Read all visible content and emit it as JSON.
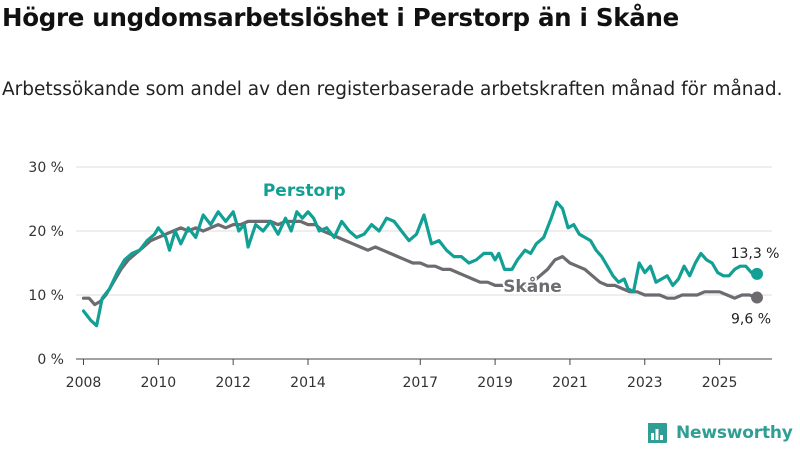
{
  "title": "Högre ungdomsarbetslöshet i Perstorp än i Skåne",
  "subtitle": "Arbetssökande som andel av den registerbaserade arbetskraften månad för månad.",
  "brand": {
    "name": "Newsworthy",
    "color": "#2f9e94"
  },
  "chart_data": {
    "type": "line",
    "title": "Högre ungdomsarbetslöshet i Perstorp än i Skåne",
    "xlabel": "",
    "ylabel": "",
    "xlim": [
      2007.8,
      2026.4
    ],
    "ylim": [
      0,
      30
    ],
    "y_ticks": [
      0,
      10,
      20,
      30
    ],
    "y_tick_labels": [
      "0 %",
      "10 %",
      "20 %",
      "30 %"
    ],
    "x_ticks": [
      2008,
      2010,
      2012,
      2014,
      2017,
      2019,
      2021,
      2023,
      2025
    ],
    "x_tick_labels": [
      "2008",
      "2010",
      "2012",
      "2014",
      "2017",
      "2019",
      "2021",
      "2023",
      "2025"
    ],
    "grid": true,
    "series": [
      {
        "name": "Perstorp",
        "color": "#12a095",
        "end_label": "13,3 %",
        "points": [
          [
            2008.0,
            7.5
          ],
          [
            2008.2,
            6.0
          ],
          [
            2008.35,
            5.2
          ],
          [
            2008.5,
            9.5
          ],
          [
            2008.7,
            11.0
          ],
          [
            2008.9,
            13.5
          ],
          [
            2009.1,
            15.5
          ],
          [
            2009.3,
            16.5
          ],
          [
            2009.5,
            17.0
          ],
          [
            2009.7,
            18.5
          ],
          [
            2009.9,
            19.5
          ],
          [
            2010.0,
            20.5
          ],
          [
            2010.2,
            19.0
          ],
          [
            2010.3,
            17.0
          ],
          [
            2010.45,
            20.0
          ],
          [
            2010.6,
            18.0
          ],
          [
            2010.8,
            20.5
          ],
          [
            2011.0,
            19.0
          ],
          [
            2011.2,
            22.5
          ],
          [
            2011.4,
            21.0
          ],
          [
            2011.6,
            23.0
          ],
          [
            2011.8,
            21.5
          ],
          [
            2012.0,
            23.0
          ],
          [
            2012.15,
            20.0
          ],
          [
            2012.3,
            21.0
          ],
          [
            2012.4,
            17.5
          ],
          [
            2012.6,
            21.0
          ],
          [
            2012.8,
            20.0
          ],
          [
            2013.0,
            21.5
          ],
          [
            2013.2,
            19.5
          ],
          [
            2013.4,
            22.0
          ],
          [
            2013.55,
            20.0
          ],
          [
            2013.7,
            23.0
          ],
          [
            2013.85,
            22.0
          ],
          [
            2014.0,
            23.0
          ],
          [
            2014.15,
            22.0
          ],
          [
            2014.3,
            20.0
          ],
          [
            2014.5,
            20.5
          ],
          [
            2014.7,
            19.0
          ],
          [
            2014.9,
            21.5
          ],
          [
            2015.1,
            20.0
          ],
          [
            2015.3,
            19.0
          ],
          [
            2015.5,
            19.5
          ],
          [
            2015.7,
            21.0
          ],
          [
            2015.9,
            20.0
          ],
          [
            2016.1,
            22.0
          ],
          [
            2016.3,
            21.5
          ],
          [
            2016.5,
            20.0
          ],
          [
            2016.7,
            18.5
          ],
          [
            2016.9,
            19.5
          ],
          [
            2017.1,
            22.5
          ],
          [
            2017.3,
            18.0
          ],
          [
            2017.5,
            18.5
          ],
          [
            2017.7,
            17.0
          ],
          [
            2017.9,
            16.0
          ],
          [
            2018.1,
            16.0
          ],
          [
            2018.3,
            15.0
          ],
          [
            2018.5,
            15.5
          ],
          [
            2018.7,
            16.5
          ],
          [
            2018.9,
            16.5
          ],
          [
            2019.0,
            15.5
          ],
          [
            2019.1,
            16.5
          ],
          [
            2019.25,
            14.0
          ],
          [
            2019.45,
            14.0
          ],
          [
            2019.6,
            15.5
          ],
          [
            2019.8,
            17.0
          ],
          [
            2019.95,
            16.5
          ],
          [
            2020.1,
            18.0
          ],
          [
            2020.3,
            19.0
          ],
          [
            2020.5,
            22.0
          ],
          [
            2020.65,
            24.5
          ],
          [
            2020.8,
            23.5
          ],
          [
            2020.95,
            20.5
          ],
          [
            2021.1,
            21.0
          ],
          [
            2021.25,
            19.5
          ],
          [
            2021.4,
            19.0
          ],
          [
            2021.55,
            18.5
          ],
          [
            2021.7,
            17.0
          ],
          [
            2021.85,
            16.0
          ],
          [
            2022.0,
            14.5
          ],
          [
            2022.15,
            13.0
          ],
          [
            2022.3,
            12.0
          ],
          [
            2022.45,
            12.5
          ],
          [
            2022.55,
            11.0
          ],
          [
            2022.7,
            10.5
          ],
          [
            2022.85,
            15.0
          ],
          [
            2023.0,
            13.5
          ],
          [
            2023.15,
            14.5
          ],
          [
            2023.3,
            12.0
          ],
          [
            2023.45,
            12.5
          ],
          [
            2023.6,
            13.0
          ],
          [
            2023.75,
            11.5
          ],
          [
            2023.9,
            12.5
          ],
          [
            2024.05,
            14.5
          ],
          [
            2024.2,
            13.0
          ],
          [
            2024.35,
            15.0
          ],
          [
            2024.5,
            16.5
          ],
          [
            2024.65,
            15.5
          ],
          [
            2024.8,
            15.0
          ],
          [
            2024.95,
            13.5
          ],
          [
            2025.1,
            13.0
          ],
          [
            2025.25,
            13.0
          ],
          [
            2025.4,
            14.0
          ],
          [
            2025.55,
            14.5
          ],
          [
            2025.7,
            14.5
          ],
          [
            2025.85,
            13.5
          ],
          [
            2026.0,
            13.3
          ]
        ]
      },
      {
        "name": "Skåne",
        "color": "#6e6b70",
        "end_label": "9,6 %",
        "points": [
          [
            2008.0,
            9.5
          ],
          [
            2008.15,
            9.5
          ],
          [
            2008.3,
            8.5
          ],
          [
            2008.45,
            9.0
          ],
          [
            2008.6,
            10.0
          ],
          [
            2008.8,
            12.0
          ],
          [
            2009.0,
            14.0
          ],
          [
            2009.2,
            15.5
          ],
          [
            2009.4,
            16.5
          ],
          [
            2009.6,
            17.5
          ],
          [
            2009.8,
            18.5
          ],
          [
            2010.0,
            19.0
          ],
          [
            2010.2,
            19.5
          ],
          [
            2010.4,
            20.0
          ],
          [
            2010.6,
            20.5
          ],
          [
            2010.8,
            20.0
          ],
          [
            2011.0,
            20.5
          ],
          [
            2011.2,
            20.0
          ],
          [
            2011.4,
            20.5
          ],
          [
            2011.6,
            21.0
          ],
          [
            2011.8,
            20.5
          ],
          [
            2012.0,
            21.0
          ],
          [
            2012.2,
            21.0
          ],
          [
            2012.4,
            21.5
          ],
          [
            2012.6,
            21.5
          ],
          [
            2012.8,
            21.5
          ],
          [
            2013.0,
            21.5
          ],
          [
            2013.2,
            21.0
          ],
          [
            2013.4,
            21.5
          ],
          [
            2013.6,
            21.5
          ],
          [
            2013.8,
            21.5
          ],
          [
            2014.0,
            21.0
          ],
          [
            2014.2,
            21.0
          ],
          [
            2014.4,
            20.0
          ],
          [
            2014.6,
            19.5
          ],
          [
            2014.8,
            19.0
          ],
          [
            2015.0,
            18.5
          ],
          [
            2015.2,
            18.0
          ],
          [
            2015.4,
            17.5
          ],
          [
            2015.6,
            17.0
          ],
          [
            2015.8,
            17.5
          ],
          [
            2016.0,
            17.0
          ],
          [
            2016.2,
            16.5
          ],
          [
            2016.4,
            16.0
          ],
          [
            2016.6,
            15.5
          ],
          [
            2016.8,
            15.0
          ],
          [
            2017.0,
            15.0
          ],
          [
            2017.2,
            14.5
          ],
          [
            2017.4,
            14.5
          ],
          [
            2017.6,
            14.0
          ],
          [
            2017.8,
            14.0
          ],
          [
            2018.0,
            13.5
          ],
          [
            2018.2,
            13.0
          ],
          [
            2018.4,
            12.5
          ],
          [
            2018.6,
            12.0
          ],
          [
            2018.8,
            12.0
          ],
          [
            2019.0,
            11.5
          ],
          [
            2019.2,
            11.5
          ],
          [
            2019.4,
            11.0
          ],
          [
            2019.6,
            11.0
          ],
          [
            2019.8,
            11.5
          ],
          [
            2020.0,
            12.0
          ],
          [
            2020.2,
            13.0
          ],
          [
            2020.4,
            14.0
          ],
          [
            2020.6,
            15.5
          ],
          [
            2020.8,
            16.0
          ],
          [
            2021.0,
            15.0
          ],
          [
            2021.2,
            14.5
          ],
          [
            2021.4,
            14.0
          ],
          [
            2021.6,
            13.0
          ],
          [
            2021.8,
            12.0
          ],
          [
            2022.0,
            11.5
          ],
          [
            2022.2,
            11.5
          ],
          [
            2022.4,
            11.0
          ],
          [
            2022.6,
            10.5
          ],
          [
            2022.8,
            10.5
          ],
          [
            2023.0,
            10.0
          ],
          [
            2023.2,
            10.0
          ],
          [
            2023.4,
            10.0
          ],
          [
            2023.6,
            9.5
          ],
          [
            2023.8,
            9.5
          ],
          [
            2024.0,
            10.0
          ],
          [
            2024.2,
            10.0
          ],
          [
            2024.4,
            10.0
          ],
          [
            2024.6,
            10.5
          ],
          [
            2024.8,
            10.5
          ],
          [
            2025.0,
            10.5
          ],
          [
            2025.2,
            10.0
          ],
          [
            2025.4,
            9.5
          ],
          [
            2025.6,
            10.0
          ],
          [
            2025.8,
            10.0
          ],
          [
            2026.0,
            9.6
          ]
        ]
      }
    ]
  }
}
